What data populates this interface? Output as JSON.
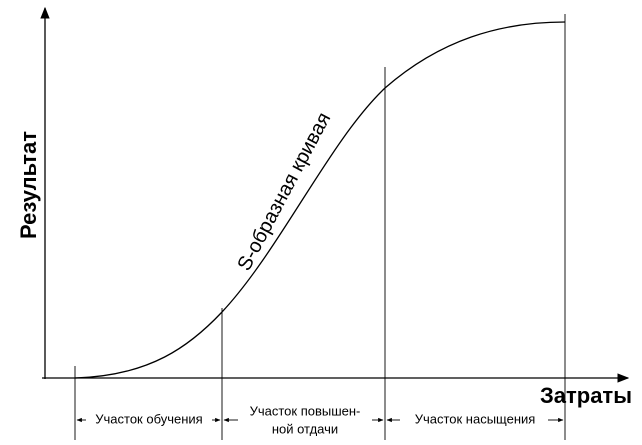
{
  "axes": {
    "y_label": "Результат",
    "x_label": "Затраты"
  },
  "curve": {
    "label": "S-образная кривая"
  },
  "segments": [
    {
      "lines": [
        "Участок обучения"
      ]
    },
    {
      "lines": [
        "Участок повышен-",
        "ной отдачи"
      ]
    },
    {
      "lines": [
        "Участок насыщения"
      ]
    }
  ]
}
